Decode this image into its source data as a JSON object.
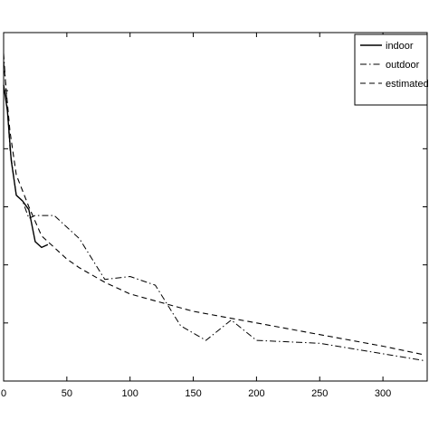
{
  "chart_data": {
    "type": "line",
    "title": "",
    "xlabel": "",
    "ylabel": "",
    "xlim": [
      0,
      335
    ],
    "ylim": [
      0,
      12
    ],
    "grid": false,
    "legend_position": "top-right",
    "xticks": [
      0,
      50,
      100,
      150,
      200,
      250,
      300
    ],
    "yticks": [
      2,
      4,
      6,
      8,
      10,
      12
    ],
    "series": [
      {
        "name": "indoor",
        "style": "solid",
        "x": [
          0,
          3,
          6,
          10,
          15,
          20,
          25,
          30,
          35
        ],
        "y": [
          10.2,
          9.3,
          7.6,
          6.4,
          6.2,
          5.9,
          4.8,
          4.6,
          4.7
        ]
      },
      {
        "name": "outdoor",
        "style": "dashdot",
        "x": [
          0,
          5,
          10,
          15,
          20,
          25,
          30,
          40,
          60,
          80,
          100,
          120,
          140,
          160,
          180,
          200,
          250,
          333
        ],
        "y": [
          11.3,
          8.0,
          6.4,
          6.2,
          5.6,
          5.7,
          5.7,
          5.7,
          4.9,
          3.5,
          3.6,
          3.3,
          1.9,
          1.4,
          2.1,
          1.4,
          1.3,
          0.7
        ]
      },
      {
        "name": "estimated",
        "style": "dashed",
        "x": [
          0,
          5,
          10,
          20,
          30,
          40,
          50,
          60,
          80,
          100,
          125,
          150,
          175,
          200,
          250,
          300,
          333
        ],
        "y": [
          11.0,
          8.6,
          7.1,
          6.0,
          5.0,
          4.6,
          4.2,
          3.9,
          3.4,
          3.0,
          2.7,
          2.4,
          2.2,
          2.0,
          1.6,
          1.2,
          0.9
        ]
      }
    ]
  }
}
